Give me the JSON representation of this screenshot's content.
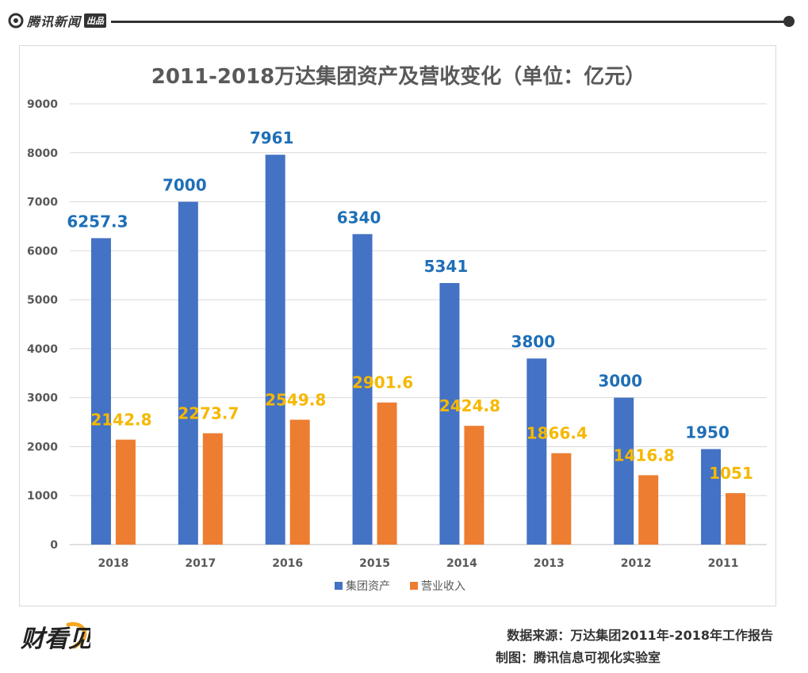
{
  "header": {
    "brand_name": "腾讯新闻",
    "brand_tag": "出品"
  },
  "footer": {
    "source": "数据来源：万达集团2011年-2018年工作报告",
    "maker": "制图：腾讯信息可视化实验室",
    "logo_text": "财看见"
  },
  "colors": {
    "assets": "#4472c4",
    "revenue": "#ed7d31",
    "assets_label": "#1f6fb7",
    "revenue_label": "#f5b800",
    "axis_text": "#595959",
    "grid": "#d9d9d9"
  },
  "chart_data": {
    "type": "bar",
    "title": "2011-2018万达集团资产及营收变化（单位：亿元）",
    "categories": [
      "2018",
      "2017",
      "2016",
      "2015",
      "2014",
      "2013",
      "2012",
      "2011"
    ],
    "series": [
      {
        "name": "集团资产",
        "values": [
          6257.3,
          7000,
          7961,
          6340,
          5341,
          3800,
          3000,
          1950
        ],
        "labels": [
          "6257.3",
          "7000",
          "7961",
          "6340",
          "5341",
          "3800",
          "3000",
          "1950"
        ]
      },
      {
        "name": "营业收入",
        "values": [
          2142.8,
          2273.7,
          2549.8,
          2901.6,
          2424.8,
          1866.4,
          1416.8,
          1051
        ],
        "labels": [
          "2142.8",
          "2273.7",
          "2549.8",
          "2901.6",
          "2424.8",
          "1866.4",
          "1416.8",
          "1051"
        ]
      }
    ],
    "ylim": [
      0,
      9000
    ],
    "yticks": [
      "0",
      "1000",
      "2000",
      "3000",
      "4000",
      "5000",
      "6000",
      "7000",
      "8000",
      "9000"
    ],
    "xlabel": "",
    "ylabel": "",
    "grid": true,
    "legend_position": "bottom"
  }
}
